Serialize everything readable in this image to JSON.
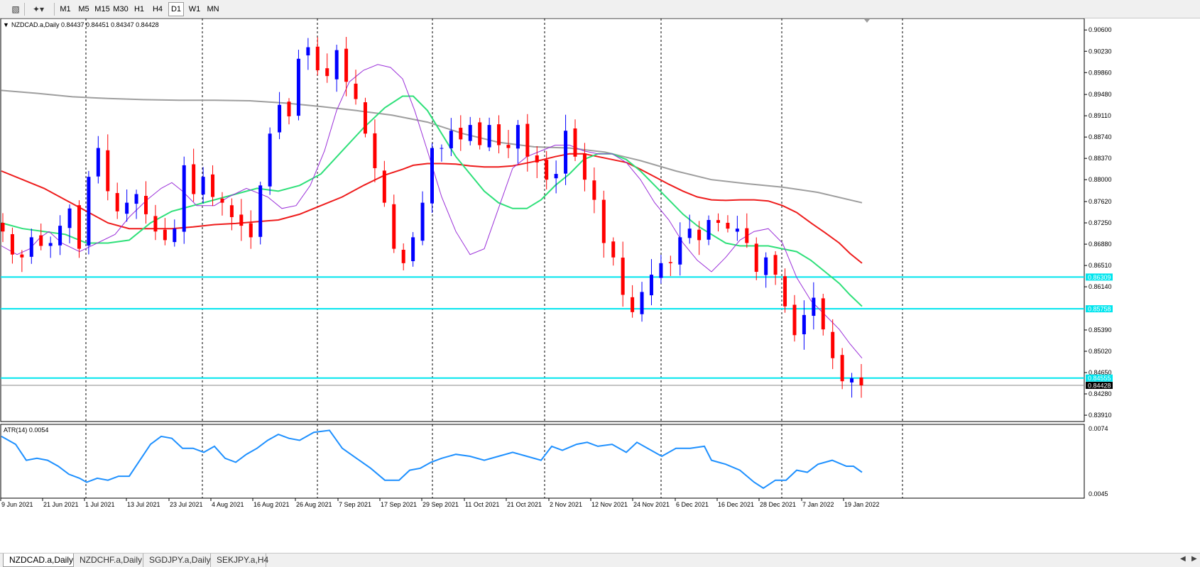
{
  "toolbar": {
    "timeframes": [
      {
        "label": "M1",
        "active": false
      },
      {
        "label": "M5",
        "active": false
      },
      {
        "label": "M15",
        "active": false
      },
      {
        "label": "M30",
        "active": false
      },
      {
        "label": "H1",
        "active": false
      },
      {
        "label": "H4",
        "active": false
      },
      {
        "label": "D1",
        "active": true
      },
      {
        "label": "W1",
        "active": false
      },
      {
        "label": "MN",
        "active": false
      }
    ],
    "icons": [
      "text-tool-icon",
      "shapes-tool-icon"
    ]
  },
  "chart_data": {
    "type": "candlestick",
    "symbol": "NZDCAD.a,Daily",
    "ohlc_label": "0.84437 0.84451 0.84347 0.84428",
    "current_price": 0.84428,
    "price_axis": {
      "min": 0.8391,
      "max": 0.906,
      "ticks": [
        "0.90600",
        "0.90230",
        "0.89860",
        "0.89480",
        "0.89110",
        "0.88740",
        "0.88370",
        "0.88000",
        "0.87620",
        "0.87250",
        "0.86880",
        "0.86510",
        "0.86140",
        "0.85390",
        "0.85020",
        "0.84650",
        "0.84280",
        "0.83910"
      ]
    },
    "horizontal_lines": [
      {
        "price": 0.86309,
        "label": "0.86309",
        "color": "#00e5ee"
      },
      {
        "price": 0.85758,
        "label": "0.85758",
        "color": "#00e5ee"
      },
      {
        "price": 0.84555,
        "label": "0.84555",
        "color": "#00e5ee"
      }
    ],
    "x_labels": [
      "9 Jun 2021",
      "21 Jun 2021",
      "1 Jul 2021",
      "13 Jul 2021",
      "23 Jul 2021",
      "4 Aug 2021",
      "16 Aug 2021",
      "26 Aug 2021",
      "7 Sep 2021",
      "17 Sep 2021",
      "29 Sep 2021",
      "11 Oct 2021",
      "21 Oct 2021",
      "2 Nov 2021",
      "12 Nov 2021",
      "24 Nov 2021",
      "6 Dec 2021",
      "16 Dec 2021",
      "28 Dec 2021",
      "7 Jan 2022",
      "19 Jan 2022"
    ],
    "bull_color": "#0000ff",
    "bear_color": "#ff0000",
    "key_closes": [
      0.871,
      0.867,
      0.8665,
      0.87,
      0.8685,
      0.869,
      0.872,
      0.875,
      0.868,
      0.8805,
      0.8855,
      0.878,
      0.8745,
      0.876,
      0.8775,
      0.874,
      0.871,
      0.8695,
      0.8715,
      0.8825,
      0.8775,
      0.8805,
      0.877,
      0.876,
      0.8735,
      0.872,
      0.87,
      0.879,
      0.888,
      0.893,
      0.891,
      0.901,
      0.903,
      0.899,
      0.898,
      0.9025,
      0.897,
      0.894,
      0.888,
      0.882,
      0.876,
      0.868,
      0.8655,
      0.87,
      0.876,
      0.8855,
      0.8855,
      0.8885,
      0.887,
      0.8895,
      0.886,
      0.8895,
      0.886,
      0.8855,
      0.8895,
      0.884,
      0.883,
      0.88,
      0.881,
      0.8885,
      0.884,
      0.88,
      0.8765,
      0.869,
      0.8665,
      0.86,
      0.857,
      0.8605,
      0.8635,
      0.8655,
      0.8655,
      0.87,
      0.8715,
      0.8695,
      0.873,
      0.8725,
      0.8715,
      0.8715,
      0.869,
      0.864,
      0.8665,
      0.8635,
      0.858,
      0.853,
      0.8565,
      0.8595,
      0.854,
      0.849,
      0.845,
      0.8455,
      0.84428
    ],
    "moving_averages": [
      {
        "name": "MA fast",
        "color": "#9b30d9",
        "points": [
          [
            0,
            0.8685
          ],
          [
            22,
            0.867
          ],
          [
            40,
            0.868
          ],
          [
            55,
            0.87
          ],
          [
            67,
            0.871
          ],
          [
            85,
            0.869
          ],
          [
            110,
            0.8675
          ],
          [
            135,
            0.869
          ],
          [
            160,
            0.8705
          ],
          [
            180,
            0.8735
          ],
          [
            205,
            0.8765
          ],
          [
            225,
            0.8785
          ],
          [
            240,
            0.8795
          ],
          [
            255,
            0.878
          ],
          [
            275,
            0.8755
          ],
          [
            300,
            0.8755
          ],
          [
            320,
            0.877
          ],
          [
            345,
            0.8785
          ],
          [
            375,
            0.877
          ],
          [
            395,
            0.875
          ],
          [
            415,
            0.8755
          ],
          [
            435,
            0.879
          ],
          [
            455,
            0.885
          ],
          [
            472,
            0.892
          ],
          [
            490,
            0.897
          ],
          [
            510,
            0.899
          ],
          [
            530,
            0.9
          ],
          [
            548,
            0.8995
          ],
          [
            565,
            0.8975
          ],
          [
            582,
            0.892
          ],
          [
            600,
            0.885
          ],
          [
            620,
            0.877
          ],
          [
            640,
            0.871
          ],
          [
            660,
            0.867
          ],
          [
            680,
            0.868
          ],
          [
            700,
            0.875
          ],
          [
            720,
            0.882
          ],
          [
            740,
            0.884
          ],
          [
            760,
            0.885
          ],
          [
            780,
            0.886
          ],
          [
            800,
            0.886
          ],
          [
            820,
            0.885
          ],
          [
            840,
            0.8845
          ],
          [
            860,
            0.8845
          ],
          [
            880,
            0.883
          ],
          [
            900,
            0.88
          ],
          [
            920,
            0.876
          ],
          [
            940,
            0.873
          ],
          [
            960,
            0.869
          ],
          [
            980,
            0.866
          ],
          [
            1000,
            0.864
          ],
          [
            1020,
            0.8665
          ],
          [
            1040,
            0.8695
          ],
          [
            1060,
            0.871
          ],
          [
            1080,
            0.8715
          ],
          [
            1100,
            0.869
          ],
          [
            1120,
            0.863
          ],
          [
            1140,
            0.859
          ],
          [
            1160,
            0.8565
          ],
          [
            1180,
            0.854
          ],
          [
            1195,
            0.8515
          ],
          [
            1212,
            0.849
          ]
        ]
      },
      {
        "name": "MA medium",
        "color": "#2fe07a",
        "points": [
          [
            0,
            0.8725
          ],
          [
            30,
            0.8715
          ],
          [
            60,
            0.871
          ],
          [
            90,
            0.8705
          ],
          [
            120,
            0.869
          ],
          [
            150,
            0.869
          ],
          [
            180,
            0.8695
          ],
          [
            210,
            0.8725
          ],
          [
            240,
            0.8745
          ],
          [
            270,
            0.8755
          ],
          [
            300,
            0.8765
          ],
          [
            330,
            0.8775
          ],
          [
            360,
            0.8785
          ],
          [
            390,
            0.878
          ],
          [
            420,
            0.879
          ],
          [
            450,
            0.881
          ],
          [
            480,
            0.885
          ],
          [
            510,
            0.889
          ],
          [
            540,
            0.8925
          ],
          [
            565,
            0.8945
          ],
          [
            580,
            0.8945
          ],
          [
            600,
            0.892
          ],
          [
            620,
            0.888
          ],
          [
            640,
            0.884
          ],
          [
            660,
            0.881
          ],
          [
            680,
            0.878
          ],
          [
            700,
            0.876
          ],
          [
            720,
            0.875
          ],
          [
            740,
            0.875
          ],
          [
            760,
            0.8765
          ],
          [
            780,
            0.879
          ],
          [
            800,
            0.881
          ],
          [
            820,
            0.8835
          ],
          [
            840,
            0.8845
          ],
          [
            860,
            0.8845
          ],
          [
            880,
            0.8835
          ],
          [
            900,
            0.8815
          ],
          [
            920,
            0.879
          ],
          [
            940,
            0.8765
          ],
          [
            960,
            0.874
          ],
          [
            980,
            0.872
          ],
          [
            1000,
            0.8705
          ],
          [
            1020,
            0.869
          ],
          [
            1040,
            0.8685
          ],
          [
            1060,
            0.8685
          ],
          [
            1080,
            0.8685
          ],
          [
            1100,
            0.868
          ],
          [
            1120,
            0.8675
          ],
          [
            1140,
            0.866
          ],
          [
            1160,
            0.864
          ],
          [
            1180,
            0.862
          ],
          [
            1195,
            0.86
          ],
          [
            1212,
            0.858
          ]
        ]
      },
      {
        "name": "MA slow",
        "color": "#ee1c1c",
        "points": [
          [
            0,
            0.8815
          ],
          [
            30,
            0.88
          ],
          [
            60,
            0.8785
          ],
          [
            90,
            0.8765
          ],
          [
            120,
            0.8745
          ],
          [
            150,
            0.8725
          ],
          [
            180,
            0.8715
          ],
          [
            210,
            0.8715
          ],
          [
            240,
            0.8715
          ],
          [
            270,
            0.8718
          ],
          [
            300,
            0.8722
          ],
          [
            330,
            0.8724
          ],
          [
            360,
            0.8727
          ],
          [
            390,
            0.873
          ],
          [
            420,
            0.874
          ],
          [
            450,
            0.8755
          ],
          [
            480,
            0.877
          ],
          [
            510,
            0.879
          ],
          [
            540,
            0.8808
          ],
          [
            565,
            0.8818
          ],
          [
            580,
            0.8825
          ],
          [
            600,
            0.8828
          ],
          [
            620,
            0.8828
          ],
          [
            640,
            0.8827
          ],
          [
            660,
            0.8824
          ],
          [
            680,
            0.8822
          ],
          [
            700,
            0.8822
          ],
          [
            720,
            0.8824
          ],
          [
            740,
            0.8829
          ],
          [
            760,
            0.8834
          ],
          [
            780,
            0.884
          ],
          [
            800,
            0.8845
          ],
          [
            820,
            0.8845
          ],
          [
            840,
            0.884
          ],
          [
            860,
            0.8835
          ],
          [
            880,
            0.883
          ],
          [
            900,
            0.8818
          ],
          [
            920,
            0.8805
          ],
          [
            940,
            0.8792
          ],
          [
            960,
            0.878
          ],
          [
            980,
            0.877
          ],
          [
            1000,
            0.8765
          ],
          [
            1020,
            0.8764
          ],
          [
            1040,
            0.8765
          ],
          [
            1060,
            0.8765
          ],
          [
            1080,
            0.8763
          ],
          [
            1100,
            0.8755
          ],
          [
            1120,
            0.8743
          ],
          [
            1140,
            0.8725
          ],
          [
            1160,
            0.8708
          ],
          [
            1180,
            0.869
          ],
          [
            1195,
            0.8672
          ],
          [
            1212,
            0.8655
          ]
        ]
      },
      {
        "name": "MA long",
        "color": "#9e9e9e",
        "points": [
          [
            0,
            0.8955
          ],
          [
            50,
            0.895
          ],
          [
            100,
            0.8944
          ],
          [
            150,
            0.8941
          ],
          [
            200,
            0.8939
          ],
          [
            250,
            0.8938
          ],
          [
            300,
            0.8938
          ],
          [
            350,
            0.8937
          ],
          [
            400,
            0.8933
          ],
          [
            450,
            0.8927
          ],
          [
            500,
            0.892
          ],
          [
            550,
            0.8912
          ],
          [
            600,
            0.89
          ],
          [
            650,
            0.888
          ],
          [
            700,
            0.8865
          ],
          [
            750,
            0.8857
          ],
          [
            800,
            0.8855
          ],
          [
            850,
            0.8848
          ],
          [
            900,
            0.8833
          ],
          [
            950,
            0.8815
          ],
          [
            1000,
            0.88
          ],
          [
            1050,
            0.8793
          ],
          [
            1100,
            0.8787
          ],
          [
            1150,
            0.8778
          ],
          [
            1212,
            0.876
          ]
        ]
      }
    ],
    "atr": {
      "label": "ATR(14) 0.0054",
      "min": 0.0045,
      "max": 0.0074,
      "ticks": [
        "0.0074",
        "0.0045"
      ],
      "color": "#1e90ff",
      "points": [
        [
          0,
          0.0072
        ],
        [
          20,
          0.0068
        ],
        [
          35,
          0.006
        ],
        [
          50,
          0.0061
        ],
        [
          65,
          0.006
        ],
        [
          80,
          0.0057
        ],
        [
          95,
          0.0053
        ],
        [
          110,
          0.0051
        ],
        [
          120,
          0.0049
        ],
        [
          135,
          0.0051
        ],
        [
          150,
          0.005
        ],
        [
          165,
          0.0052
        ],
        [
          180,
          0.0052
        ],
        [
          195,
          0.006
        ],
        [
          210,
          0.0068
        ],
        [
          225,
          0.0072
        ],
        [
          240,
          0.0071
        ],
        [
          255,
          0.0066
        ],
        [
          270,
          0.0066
        ],
        [
          285,
          0.0064
        ],
        [
          300,
          0.0067
        ],
        [
          315,
          0.0061
        ],
        [
          330,
          0.0059
        ],
        [
          345,
          0.0063
        ],
        [
          360,
          0.0066
        ],
        [
          375,
          0.007
        ],
        [
          390,
          0.0073
        ],
        [
          405,
          0.0071
        ],
        [
          420,
          0.007
        ],
        [
          440,
          0.0074
        ],
        [
          462,
          0.0075
        ],
        [
          480,
          0.0066
        ],
        [
          500,
          0.0061
        ],
        [
          520,
          0.0056
        ],
        [
          540,
          0.005
        ],
        [
          560,
          0.005
        ],
        [
          575,
          0.0055
        ],
        [
          590,
          0.0056
        ],
        [
          605,
          0.0059
        ],
        [
          620,
          0.0061
        ],
        [
          640,
          0.0063
        ],
        [
          660,
          0.0062
        ],
        [
          680,
          0.006
        ],
        [
          700,
          0.0062
        ],
        [
          720,
          0.0064
        ],
        [
          740,
          0.0062
        ],
        [
          760,
          0.006
        ],
        [
          775,
          0.0067
        ],
        [
          790,
          0.0065
        ],
        [
          810,
          0.0068
        ],
        [
          825,
          0.0069
        ],
        [
          840,
          0.0067
        ],
        [
          860,
          0.0068
        ],
        [
          880,
          0.0064
        ],
        [
          895,
          0.0069
        ],
        [
          910,
          0.0066
        ],
        [
          930,
          0.0062
        ],
        [
          950,
          0.0066
        ],
        [
          970,
          0.0066
        ],
        [
          990,
          0.0067
        ],
        [
          1000,
          0.006
        ],
        [
          1020,
          0.0058
        ],
        [
          1040,
          0.0055
        ],
        [
          1060,
          0.0049
        ],
        [
          1073,
          0.0046
        ],
        [
          1090,
          0.005
        ],
        [
          1105,
          0.005
        ],
        [
          1120,
          0.0055
        ],
        [
          1135,
          0.0054
        ],
        [
          1150,
          0.0058
        ],
        [
          1170,
          0.006
        ],
        [
          1190,
          0.0057
        ],
        [
          1200,
          0.0057
        ],
        [
          1212,
          0.0054
        ]
      ]
    }
  },
  "tabs": [
    {
      "label": "NZDCAD.a,Daily",
      "active": true
    },
    {
      "label": "NZDCHF.a,Daily",
      "active": false
    },
    {
      "label": "SGDJPY.a,Daily",
      "active": false
    },
    {
      "label": "SEKJPY.a,H4",
      "active": false
    }
  ]
}
